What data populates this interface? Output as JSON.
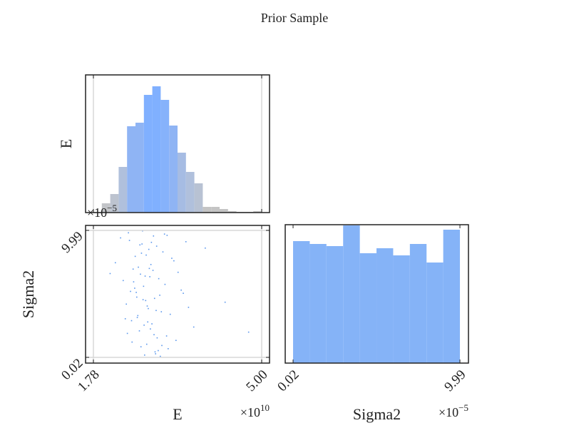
{
  "title": "Prior Sample",
  "chart_data": [
    {
      "type": "histogram",
      "ylabel": "E",
      "bins": [
        1.78,
        1.941,
        2.102,
        2.263,
        2.424,
        2.585,
        2.746,
        2.907,
        3.068,
        3.229,
        3.39,
        3.551,
        3.712,
        3.873,
        4.034,
        4.195,
        4.356,
        4.517,
        4.678,
        4.839,
        5.0
      ],
      "counts": [
        1,
        13,
        26,
        64,
        121,
        126,
        165,
        177,
        158,
        122,
        84,
        57,
        41,
        8,
        8,
        5,
        2,
        1,
        1,
        2
      ],
      "colors": [
        "#c4c4c4",
        "#c2c4c8",
        "#bcc3cf",
        "#b0c0dc",
        "#8fb4f4",
        "#8fb4f4",
        "#80b0ff",
        "#80b0ff",
        "#86b2fb",
        "#8fb4f4",
        "#a6bce3",
        "#b0c0dc",
        "#b8c2d3",
        "#c4c4c4",
        "#c4c4c4",
        "#c4c4c4",
        "#c4c4c4",
        "#c4c4c4",
        "#c4c4c4",
        "#c4c4c4"
      ],
      "xlim": [
        1.63,
        5.15
      ],
      "ylim": [
        0,
        193
      ],
      "xticks": [
        1.78,
        {
          "value": 5,
          "label": "5.00"
        }
      ],
      "grid": true
    },
    {
      "type": "scatter",
      "xlabel": "E",
      "ylabel": "Sigma2",
      "color": "#5b97ec",
      "x": [
        2.45,
        2.71,
        3.02,
        2.88,
        2.6,
        3.25,
        2.93,
        2.52,
        3.4,
        2.78,
        2.66,
        3.11,
        2.35,
        2.97,
        3.55,
        2.83,
        2.58,
        3.18,
        2.74,
        2.9,
        2.47,
        3.05,
        2.69,
        3.32,
        2.86,
        2.62,
        2.99,
        3.7,
        2.55,
        2.8,
        3.14,
        2.41,
        2.92,
        2.76,
        3.08,
        2.64,
        3.46,
        2.84,
        2.51,
        2.95,
        3.21,
        2.68,
        2.3,
        3.0,
        2.79,
        3.6,
        2.57,
        2.87,
        3.28,
        2.72,
        2.43,
        3.03,
        2.81,
        3.92,
        2.63,
        2.96,
        2.2,
        3.15,
        2.75,
        4.3,
        2.89,
        2.54,
        3.36,
        2.7,
        2.98,
        2.49,
        3.09,
        2.85,
        2.61,
        4.75,
        2.77,
        3.19,
        2.39,
        2.94,
        2.67,
        3.5,
        2.82,
        2.1,
        3.06,
        2.73
      ],
      "y": [
        9.8,
        8.92,
        0.55,
        7.31,
        5.12,
        3.4,
        9.55,
        1.22,
        6.7,
        4.48,
        2.1,
        8.3,
        6.05,
        0.3,
        9.1,
        3.85,
        7.95,
        1.7,
        5.6,
        2.65,
        9.2,
        4.9,
        0.85,
        7.6,
        6.35,
        3.15,
        8.75,
        2.4,
        5.95,
        1.05,
        9.7,
        4.2,
        6.85,
        0.2,
        3.6,
        7.1,
        5.3,
        8.5,
        2.9,
        4.65,
        0.7,
        6.55,
        9.4,
        1.55,
        8.05,
        3.95,
        5.45,
        2.25,
        7.8,
        9.95,
        1.9,
        6.2,
        4.05,
        8.6,
        3.3,
        0.45,
        7.45,
        5.75,
        2.55,
        4.35,
        9.05,
        6.95,
        1.35,
        8.2,
        3.7,
        5.2,
        0.95,
        7.0,
        4.75,
        2.0,
        6.4,
        9.6,
        3.05,
        1.8,
        8.85,
        5.05,
        2.8,
        6.6,
        0.1,
        4.55
      ],
      "xlim": [
        1.63,
        5.15
      ],
      "ylim": [
        -0.43,
        10.38
      ],
      "xticks": [
        1.78,
        {
          "value": 5,
          "label": "5.00"
        }
      ],
      "yticks": [
        0.02,
        9.99
      ],
      "grid": true,
      "x_offset": {
        "base": "×10",
        "exp": "10"
      },
      "y_offset": {
        "base": "×10",
        "exp": "−5"
      }
    },
    {
      "type": "histogram",
      "xlabel": "Sigma2",
      "color": "#85b3f7",
      "bins": [
        0.02,
        1.017,
        2.014,
        3.011,
        4.008,
        5.005,
        6.002,
        6.999,
        7.996,
        8.993,
        9.99
      ],
      "counts": [
        171,
        167,
        164,
        193,
        154,
        161,
        151,
        167,
        141,
        187
      ],
      "xlim": [
        -0.45,
        10.5
      ],
      "ylim": [
        0,
        194
      ],
      "xticks": [
        0.02,
        9.99
      ],
      "grid": false,
      "x_offset": {
        "base": "×10",
        "exp": "−5"
      }
    }
  ]
}
